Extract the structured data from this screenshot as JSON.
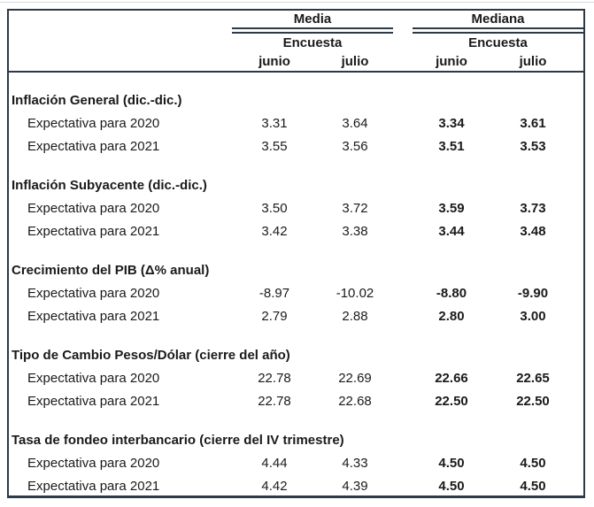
{
  "header": {
    "groups": [
      {
        "title": "Media",
        "subtitle": "Encuesta",
        "columns": [
          "junio",
          "julio"
        ]
      },
      {
        "title": "Mediana",
        "subtitle": "Encuesta",
        "columns": [
          "junio",
          "julio"
        ]
      }
    ]
  },
  "sections": [
    {
      "title": "Inflación General (dic.-dic.)",
      "rows": [
        {
          "label": "Expectativa para 2020",
          "values": [
            "3.31",
            "3.64",
            "3.34",
            "3.61"
          ]
        },
        {
          "label": "Expectativa para 2021",
          "values": [
            "3.55",
            "3.56",
            "3.51",
            "3.53"
          ]
        }
      ]
    },
    {
      "title": "Inflación Subyacente (dic.-dic.)",
      "rows": [
        {
          "label": "Expectativa para 2020",
          "values": [
            "3.50",
            "3.72",
            "3.59",
            "3.73"
          ]
        },
        {
          "label": "Expectativa para 2021",
          "values": [
            "3.42",
            "3.38",
            "3.44",
            "3.48"
          ]
        }
      ]
    },
    {
      "title": "Crecimiento del PIB (Δ% anual)",
      "rows": [
        {
          "label": "Expectativa para 2020",
          "values": [
            "-8.97",
            "-10.02",
            "-8.80",
            "-9.90"
          ]
        },
        {
          "label": "Expectativa para 2021",
          "values": [
            "2.79",
            "2.88",
            "2.80",
            "3.00"
          ]
        }
      ]
    },
    {
      "title": "Tipo de Cambio Pesos/Dólar (cierre del año)",
      "rows": [
        {
          "label": "Expectativa para 2020",
          "values": [
            "22.78",
            "22.69",
            "22.66",
            "22.65"
          ]
        },
        {
          "label": "Expectativa para 2021",
          "values": [
            "22.78",
            "22.68",
            "22.50",
            "22.50"
          ]
        }
      ]
    },
    {
      "title": "Tasa de fondeo interbancario (cierre del IV trimestre)",
      "rows": [
        {
          "label": "Expectativa para 2020",
          "values": [
            "4.44",
            "4.33",
            "4.50",
            "4.50"
          ]
        },
        {
          "label": "Expectativa para 2021",
          "values": [
            "4.42",
            "4.39",
            "4.50",
            "4.50"
          ]
        }
      ]
    }
  ],
  "colors": {
    "border": "#2c3a47",
    "text": "#1a1a1a"
  }
}
